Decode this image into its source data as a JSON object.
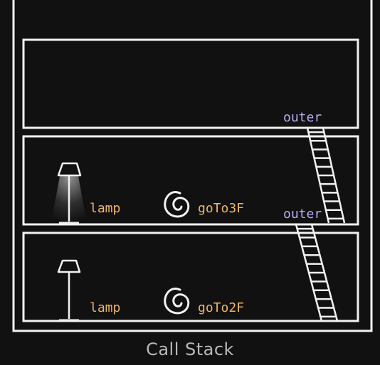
{
  "caption": "Call Stack",
  "colors": {
    "background": "#111111",
    "chalk": "#f2f2f2",
    "variable_label": "#f0b46a",
    "scope_link_label": "#b8aef0",
    "lamp_glow": "#ffffff"
  },
  "frames": [
    {
      "name": "goTo3F",
      "variable": "lamp",
      "lamp_lit": true,
      "scope_link": "outer"
    },
    {
      "name": "goTo2F",
      "variable": "lamp",
      "lamp_lit": false,
      "scope_link": "outer"
    }
  ],
  "icons": {
    "lamp": "floor-lamp-icon",
    "function": "spiral-icon",
    "scope_link": "ladder-icon"
  }
}
